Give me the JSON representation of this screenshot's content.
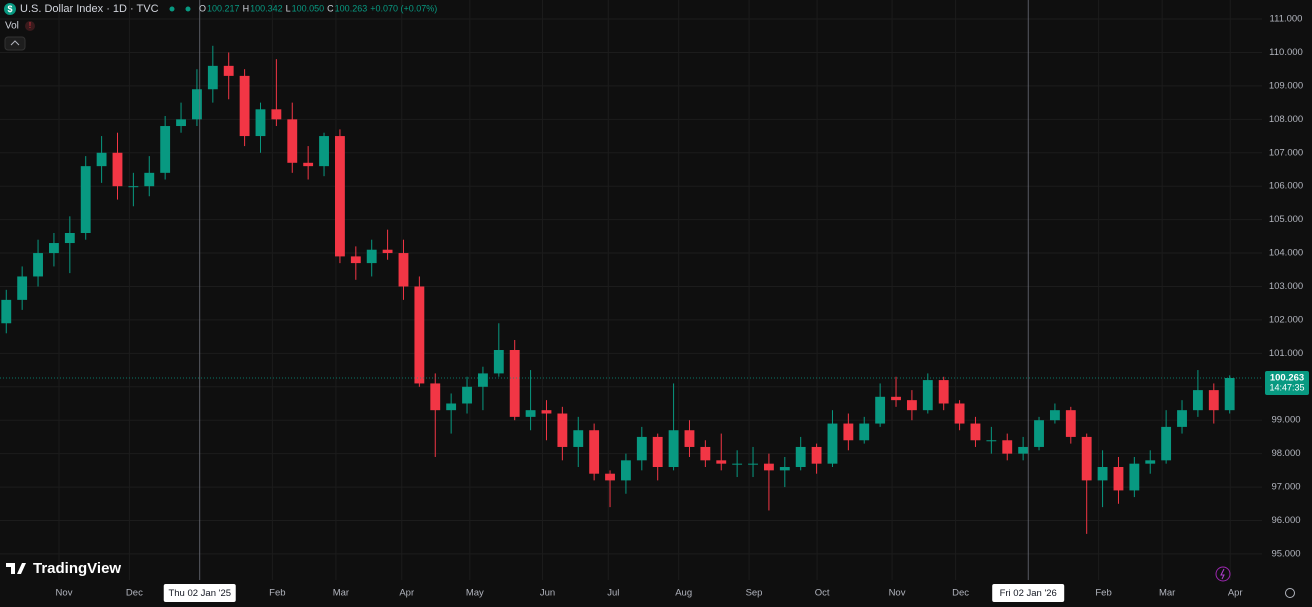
{
  "header": {
    "title": "U.S. Dollar Index · 1D · TVC",
    "ohlc": [
      {
        "key": "O",
        "value": "100.217"
      },
      {
        "key": "H",
        "value": "100.342"
      },
      {
        "key": "L",
        "value": "100.050"
      },
      {
        "key": "C",
        "value": "100.263"
      }
    ],
    "change": "+0.070 (+0.07%)",
    "indicator": "Vol",
    "logo": "TradingView"
  },
  "chart_data": {
    "type": "candlestick",
    "up_color": "#089981",
    "down_color": "#f23645",
    "grid": true,
    "x": [
      "2024-10-07",
      "2024-10-14",
      "2024-10-21",
      "2024-10-28",
      "2024-11-04",
      "2024-11-11",
      "2024-11-18",
      "2024-11-25",
      "2024-12-02",
      "2024-12-09",
      "2024-12-16",
      "2024-12-23",
      "2024-12-30",
      "2025-01-06",
      "2025-01-13",
      "2025-01-20",
      "2025-01-27",
      "2025-02-03",
      "2025-02-10",
      "2025-02-17",
      "2025-02-24",
      "2025-03-03",
      "2025-03-10",
      "2025-03-17",
      "2025-03-24",
      "2025-03-31",
      "2025-04-07",
      "2025-04-14",
      "2025-04-21",
      "2025-04-28",
      "2025-05-05",
      "2025-05-12",
      "2025-05-19",
      "2025-05-26",
      "2025-06-02",
      "2025-06-09",
      "2025-06-16",
      "2025-06-23",
      "2025-06-30",
      "2025-07-07",
      "2025-07-14",
      "2025-07-21",
      "2025-07-28",
      "2025-08-04",
      "2025-08-11",
      "2025-08-18",
      "2025-08-25",
      "2025-09-01",
      "2025-09-08",
      "2025-09-15",
      "2025-09-22",
      "2025-09-29",
      "2025-10-06",
      "2025-10-13",
      "2025-10-20",
      "2025-10-27",
      "2025-11-03",
      "2025-11-10",
      "2025-11-17",
      "2025-11-24",
      "2025-12-01",
      "2025-12-08",
      "2025-12-15",
      "2025-12-22",
      "2025-12-29",
      "2026-01-05",
      "2026-01-12",
      "2026-01-19",
      "2026-01-26",
      "2026-02-02",
      "2026-02-09",
      "2026-02-16",
      "2026-02-23",
      "2026-03-02",
      "2026-03-09",
      "2026-03-16",
      "2026-03-23",
      "2026-03-30"
    ],
    "open": [
      101.9,
      102.6,
      103.3,
      104.0,
      104.3,
      104.6,
      106.6,
      107.0,
      106.0,
      106.0,
      106.4,
      107.8,
      108.0,
      108.9,
      109.6,
      109.3,
      107.5,
      108.3,
      108.0,
      106.7,
      106.6,
      107.5,
      103.9,
      103.7,
      104.1,
      104.0,
      103.0,
      100.1,
      99.3,
      99.5,
      100.0,
      100.4,
      101.1,
      99.1,
      99.3,
      99.2,
      98.2,
      98.7,
      97.4,
      97.2,
      97.8,
      98.5,
      97.6,
      98.7,
      98.2,
      97.8,
      97.7,
      97.7,
      97.7,
      97.5,
      97.6,
      98.2,
      97.7,
      98.9,
      98.4,
      98.9,
      99.7,
      99.6,
      99.3,
      100.2,
      99.5,
      98.9,
      98.4,
      98.4,
      98.0,
      98.2,
      99.0,
      99.3,
      98.5,
      97.2,
      97.6,
      96.9,
      97.7,
      97.8,
      98.8,
      99.3,
      99.9,
      99.3
    ],
    "high": [
      102.9,
      103.6,
      104.4,
      104.6,
      105.1,
      106.9,
      107.5,
      107.6,
      106.4,
      106.9,
      108.1,
      108.5,
      109.5,
      110.2,
      110.0,
      109.5,
      108.5,
      109.8,
      108.5,
      107.2,
      107.6,
      107.7,
      104.2,
      104.4,
      104.7,
      104.4,
      103.3,
      100.4,
      99.8,
      100.3,
      100.6,
      101.9,
      101.4,
      100.5,
      99.6,
      99.4,
      99.1,
      98.9,
      97.5,
      98.0,
      98.8,
      98.6,
      100.1,
      99.0,
      98.4,
      98.6,
      98.1,
      98.2,
      98.0,
      97.9,
      98.5,
      98.3,
      99.3,
      99.2,
      99.1,
      100.1,
      100.3,
      99.9,
      100.4,
      100.3,
      99.6,
      99.1,
      98.8,
      98.6,
      98.5,
      99.1,
      99.5,
      99.4,
      98.6,
      98.1,
      97.9,
      97.9,
      98.1,
      99.3,
      99.6,
      100.5,
      100.1,
      100.342
    ],
    "low": [
      101.6,
      102.3,
      103.0,
      103.6,
      103.4,
      104.4,
      106.1,
      105.6,
      105.4,
      105.7,
      106.2,
      107.6,
      107.8,
      108.5,
      108.6,
      107.2,
      107.0,
      107.8,
      106.4,
      106.2,
      106.3,
      103.7,
      103.2,
      103.3,
      103.8,
      102.6,
      100.0,
      97.9,
      98.6,
      99.2,
      99.3,
      100.3,
      99.0,
      98.7,
      98.4,
      97.8,
      97.6,
      97.2,
      96.4,
      96.8,
      97.5,
      97.2,
      97.5,
      97.9,
      97.6,
      97.5,
      97.3,
      97.3,
      96.3,
      97.0,
      97.5,
      97.4,
      97.6,
      98.1,
      98.3,
      98.8,
      99.4,
      99.0,
      99.2,
      99.3,
      98.7,
      98.2,
      98.0,
      97.8,
      97.8,
      98.1,
      98.9,
      98.3,
      95.6,
      96.4,
      96.5,
      96.7,
      97.4,
      97.7,
      98.6,
      99.1,
      98.9,
      99.2
    ],
    "close": [
      102.6,
      103.3,
      104.0,
      104.3,
      104.6,
      106.6,
      107.0,
      106.0,
      106.0,
      106.4,
      107.8,
      108.0,
      108.9,
      109.6,
      109.3,
      107.5,
      108.3,
      108.0,
      106.7,
      106.6,
      107.5,
      103.9,
      103.7,
      104.1,
      104.0,
      103.0,
      100.1,
      99.3,
      99.5,
      100.0,
      100.4,
      101.1,
      99.1,
      99.3,
      99.2,
      98.2,
      98.7,
      97.4,
      97.2,
      97.8,
      98.5,
      97.6,
      98.7,
      98.2,
      97.8,
      97.7,
      97.7,
      97.7,
      97.5,
      97.6,
      98.2,
      97.7,
      98.9,
      98.4,
      98.9,
      99.7,
      99.6,
      99.3,
      100.2,
      99.5,
      98.9,
      98.4,
      98.4,
      98.0,
      98.2,
      99.0,
      99.3,
      98.5,
      97.2,
      97.6,
      96.9,
      97.7,
      97.8,
      98.8,
      99.3,
      99.9,
      99.3,
      100.263
    ],
    "countdown": "14:47:35",
    "xlim": [
      "2024-10-06",
      "2026-04-15"
    ],
    "xticks": [
      {
        "value": "2024-11-01",
        "label": "Nov"
      },
      {
        "value": "2024-12-02",
        "label": "Dec"
      },
      {
        "value": "2025-02-03",
        "label": "Feb"
      },
      {
        "value": "2025-03-03",
        "label": "Mar"
      },
      {
        "value": "2025-04-01",
        "label": "Apr"
      },
      {
        "value": "2025-05-01",
        "label": "May"
      },
      {
        "value": "2025-06-02",
        "label": "Jun"
      },
      {
        "value": "2025-07-01",
        "label": "Jul"
      },
      {
        "value": "2025-08-01",
        "label": "Aug"
      },
      {
        "value": "2025-09-01",
        "label": "Sep"
      },
      {
        "value": "2025-10-01",
        "label": "Oct"
      },
      {
        "value": "2025-11-03",
        "label": "Nov"
      },
      {
        "value": "2025-12-01",
        "label": "Dec"
      },
      {
        "value": "2026-02-02",
        "label": "Feb"
      },
      {
        "value": "2026-03-02",
        "label": "Mar"
      },
      {
        "value": "2026-04-01",
        "label": "Apr"
      }
    ],
    "crosshairs": [
      {
        "value": "2025-01-02",
        "label": "Thu 02 Jan '25"
      },
      {
        "value": "2026-01-02",
        "label": "Fri 02 Jan '26"
      }
    ],
    "ylim": [
      94.22,
      111.57
    ],
    "yticks": [
      {
        "value": 95,
        "label": "95.000"
      },
      {
        "value": 96,
        "label": "96.000"
      },
      {
        "value": 97,
        "label": "97.000"
      },
      {
        "value": 98,
        "label": "98.000"
      },
      {
        "value": 99,
        "label": "99.000"
      },
      {
        "value": 100,
        "label": "100.000"
      },
      {
        "value": 101,
        "label": "101.000"
      },
      {
        "value": 102,
        "label": "102.000"
      },
      {
        "value": 103,
        "label": "103.000"
      },
      {
        "value": 104,
        "label": "104.000"
      },
      {
        "value": 105,
        "label": "105.000"
      },
      {
        "value": 106,
        "label": "106.000"
      },
      {
        "value": 107,
        "label": "107.000"
      },
      {
        "value": 108,
        "label": "108.000"
      },
      {
        "value": 109,
        "label": "109.000"
      },
      {
        "value": 110,
        "label": "110.000"
      },
      {
        "value": 111,
        "label": "111.000"
      }
    ]
  }
}
